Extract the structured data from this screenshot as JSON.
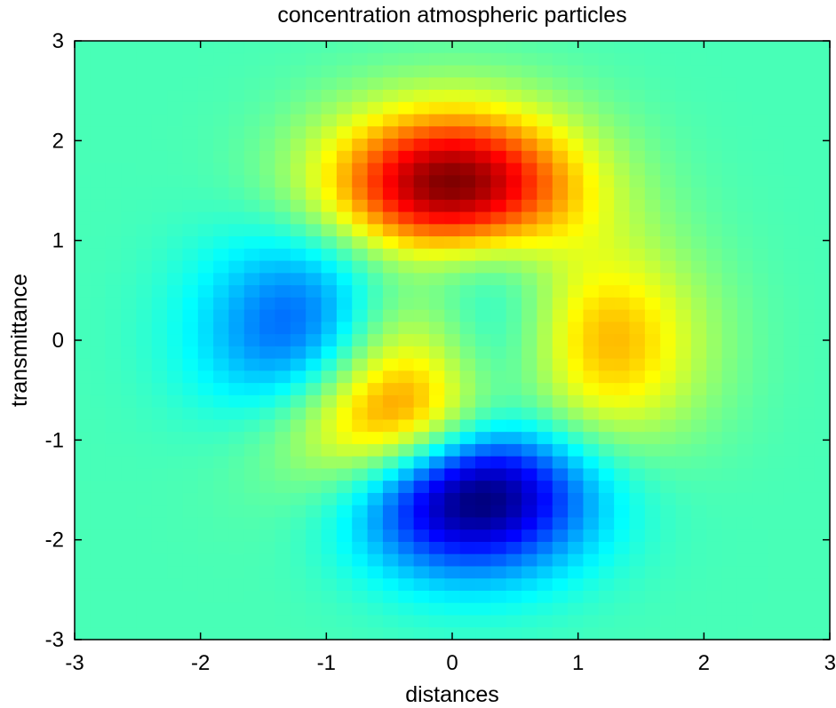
{
  "chart_data": {
    "type": "heatmap",
    "title": "concentration  atmospheric particles",
    "xlabel": "distances",
    "ylabel": "transmittance",
    "xlim": [
      -3,
      3
    ],
    "ylim": [
      -3,
      3
    ],
    "xticks": [
      -3,
      -2,
      -1,
      0,
      1,
      2,
      3
    ],
    "yticks": [
      -3,
      -2,
      -1,
      0,
      1,
      2,
      3
    ],
    "grid": false,
    "colormap": "jet",
    "grid_resolution": 49,
    "color_range": [
      -6.5,
      8.1
    ],
    "function": "peaks",
    "features": [
      {
        "kind": "maximum",
        "x": 0.0,
        "y": 1.6,
        "value": 8.1
      },
      {
        "kind": "minimum",
        "x": 0.25,
        "y": -1.6,
        "value": -6.5
      },
      {
        "kind": "minimum",
        "x": -1.35,
        "y": 0.2,
        "value": -3.0
      },
      {
        "kind": "local maximum",
        "x": 1.3,
        "y": 0.0,
        "value": 3.8
      },
      {
        "kind": "local maximum",
        "x": -0.45,
        "y": -0.6,
        "value": 3.8
      }
    ]
  }
}
